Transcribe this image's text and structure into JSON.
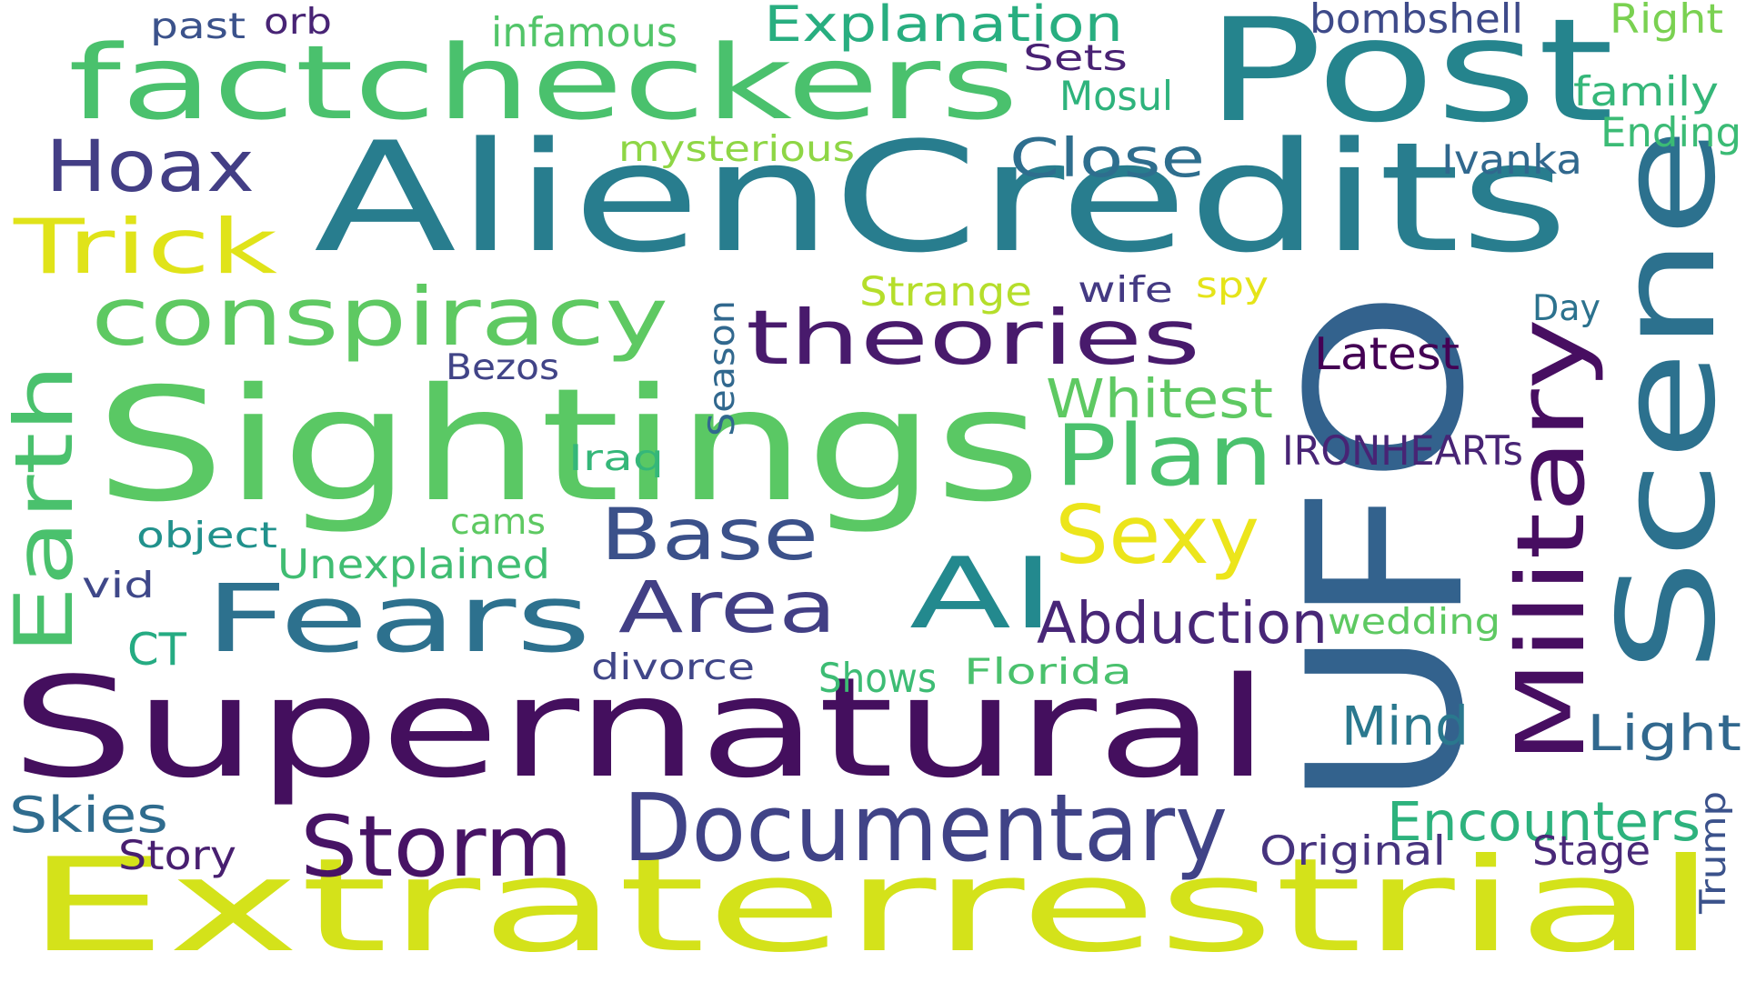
{
  "cloud": {
    "background": "#ffffff",
    "words": [
      {
        "text": "Extraterrestrial",
        "color": "#d4e21a"
      },
      {
        "text": "Supernatural",
        "color": "#440f5e"
      },
      {
        "text": "UFO",
        "color": "#33628d"
      },
      {
        "text": "Sightings",
        "color": "#5ac864"
      },
      {
        "text": "AlienCredits",
        "color": "#287d8e"
      },
      {
        "text": "Post",
        "color": "#25848d"
      },
      {
        "text": "Scene",
        "color": "#2c718e"
      },
      {
        "text": "factcheckers",
        "color": "#4ac16d"
      },
      {
        "text": "conspiracy",
        "color": "#5ec962"
      },
      {
        "text": "theories",
        "color": "#481a6c"
      },
      {
        "text": "Documentary",
        "color": "#404387"
      },
      {
        "text": "Fears",
        "color": "#2d718e"
      },
      {
        "text": "Storm",
        "color": "#471365"
      },
      {
        "text": "Area",
        "color": "#423f85"
      },
      {
        "text": "AI",
        "color": "#23898e"
      },
      {
        "text": "Base",
        "color": "#3b518a"
      },
      {
        "text": "Military",
        "color": "#470e61"
      },
      {
        "text": "Plan",
        "color": "#4ac16d"
      },
      {
        "text": "Sexy",
        "color": "#ece51b"
      },
      {
        "text": "Earth",
        "color": "#4ac16d"
      },
      {
        "text": "Trick",
        "color": "#e0e319"
      },
      {
        "text": "Hoax",
        "color": "#433e85"
      },
      {
        "text": "Abduction",
        "color": "#482677"
      },
      {
        "text": "Explanation",
        "color": "#28ae80"
      },
      {
        "text": "Close",
        "color": "#2e6e8e"
      },
      {
        "text": "Whitest",
        "color": "#5ec962"
      },
      {
        "text": "Encounters",
        "color": "#2db27d"
      },
      {
        "text": "Mind",
        "color": "#2a788e"
      },
      {
        "text": "Light",
        "color": "#31688e"
      },
      {
        "text": "Skies",
        "color": "#2f6c8e"
      },
      {
        "text": "Latest",
        "color": "#440154"
      },
      {
        "text": "IRONHEARTs",
        "color": "#482475"
      },
      {
        "text": "Original",
        "color": "#46337e"
      },
      {
        "text": "Stage",
        "color": "#482878"
      },
      {
        "text": "Story",
        "color": "#481f70"
      },
      {
        "text": "Trump",
        "color": "#3b528b"
      },
      {
        "text": "Unexplained",
        "color": "#40bd72"
      },
      {
        "text": "bombshell",
        "color": "#3e4a89"
      },
      {
        "text": "Right",
        "color": "#7ad151"
      },
      {
        "text": "family",
        "color": "#35b779"
      },
      {
        "text": "Ending",
        "color": "#3bbb75"
      },
      {
        "text": "Ivanka",
        "color": "#31688e"
      },
      {
        "text": "Mosul",
        "color": "#2eb37c"
      },
      {
        "text": "Sets",
        "color": "#482173"
      },
      {
        "text": "infamous",
        "color": "#52c569"
      },
      {
        "text": "past",
        "color": "#3b528b"
      },
      {
        "text": "orb",
        "color": "#482475"
      },
      {
        "text": "mysterious",
        "color": "#8ed645"
      },
      {
        "text": "Strange",
        "color": "#b5de2b"
      },
      {
        "text": "wife",
        "color": "#443a83"
      },
      {
        "text": "spy",
        "color": "#e5e419"
      },
      {
        "text": "Day",
        "color": "#2c728e"
      },
      {
        "text": "Season",
        "color": "#31688e"
      },
      {
        "text": "Bezos",
        "color": "#414487"
      },
      {
        "text": "Iraq",
        "color": "#35b779"
      },
      {
        "text": "cams",
        "color": "#5ec962"
      },
      {
        "text": "object",
        "color": "#21918c"
      },
      {
        "text": "vid",
        "color": "#3f4889"
      },
      {
        "text": "CT",
        "color": "#25ab82"
      },
      {
        "text": "divorce",
        "color": "#404688"
      },
      {
        "text": "Shows",
        "color": "#3dbc74"
      },
      {
        "text": "Florida",
        "color": "#4ac16d"
      },
      {
        "text": "wedding",
        "color": "#5ec962"
      }
    ]
  }
}
